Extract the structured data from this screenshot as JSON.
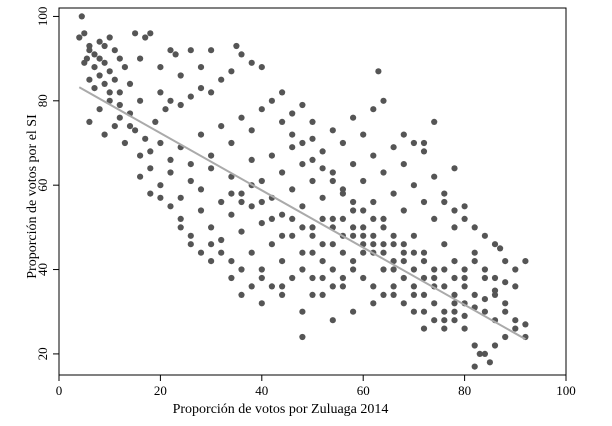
{
  "chart_data": {
    "type": "scatter",
    "title": "",
    "xlabel": "Proporción de votos por Zuluaga 2014",
    "ylabel": "Proporción de votos por el SI",
    "xlim": [
      0,
      100
    ],
    "ylim": [
      15,
      102
    ],
    "xticks": [
      0,
      20,
      40,
      60,
      80,
      100
    ],
    "yticks": [
      20,
      40,
      60,
      80,
      100
    ],
    "grid": false,
    "legend": "none",
    "point_color": "#555555",
    "fit_line_color": "#aaaaaa",
    "fit_line": {
      "x": [
        4,
        92
      ],
      "y": [
        83.2,
        23.5
      ]
    },
    "series": [
      {
        "points": [
          [
            4,
            95
          ],
          [
            4.5,
            100
          ],
          [
            5,
            96
          ],
          [
            6,
            93
          ],
          [
            5.5,
            90
          ],
          [
            7,
            91
          ],
          [
            8,
            94
          ],
          [
            9,
            93
          ],
          [
            10,
            95
          ],
          [
            11,
            92
          ],
          [
            7,
            88
          ],
          [
            8,
            86
          ],
          [
            9,
            89
          ],
          [
            10,
            87
          ],
          [
            12,
            90
          ],
          [
            13,
            88
          ],
          [
            6,
            85
          ],
          [
            7,
            83
          ],
          [
            9,
            84
          ],
          [
            11,
            85
          ],
          [
            12,
            82
          ],
          [
            14,
            84
          ],
          [
            15,
            96
          ],
          [
            17,
            95
          ],
          [
            18,
            96
          ],
          [
            8,
            78
          ],
          [
            10,
            80
          ],
          [
            12,
            79
          ],
          [
            14,
            77
          ],
          [
            16,
            80
          ],
          [
            6,
            75
          ],
          [
            9,
            72
          ],
          [
            11,
            74
          ],
          [
            13,
            70
          ],
          [
            15,
            73
          ],
          [
            17,
            71
          ],
          [
            19,
            75
          ],
          [
            21,
            78
          ],
          [
            22,
            92
          ],
          [
            23,
            91
          ],
          [
            26,
            92
          ],
          [
            20,
            82
          ],
          [
            22,
            80
          ],
          [
            24,
            79
          ],
          [
            26,
            81
          ],
          [
            28,
            83
          ],
          [
            30,
            82
          ],
          [
            32,
            85
          ],
          [
            34,
            87
          ],
          [
            35,
            93
          ],
          [
            36,
            91
          ],
          [
            38,
            89
          ],
          [
            40,
            88
          ],
          [
            18,
            68
          ],
          [
            20,
            70
          ],
          [
            22,
            66
          ],
          [
            24,
            69
          ],
          [
            26,
            65
          ],
          [
            28,
            72
          ],
          [
            30,
            67
          ],
          [
            32,
            74
          ],
          [
            34,
            70
          ],
          [
            36,
            76
          ],
          [
            38,
            73
          ],
          [
            40,
            78
          ],
          [
            42,
            80
          ],
          [
            44,
            82
          ],
          [
            46,
            77
          ],
          [
            48,
            79
          ],
          [
            50,
            75
          ],
          [
            16,
            62
          ],
          [
            18,
            58
          ],
          [
            20,
            60
          ],
          [
            22,
            63
          ],
          [
            24,
            57
          ],
          [
            26,
            61
          ],
          [
            28,
            59
          ],
          [
            30,
            64
          ],
          [
            32,
            56
          ],
          [
            34,
            62
          ],
          [
            36,
            58
          ],
          [
            38,
            66
          ],
          [
            40,
            61
          ],
          [
            42,
            67
          ],
          [
            44,
            63
          ],
          [
            46,
            69
          ],
          [
            48,
            65
          ],
          [
            50,
            71
          ],
          [
            52,
            68
          ],
          [
            54,
            73
          ],
          [
            56,
            70
          ],
          [
            58,
            76
          ],
          [
            60,
            72
          ],
          [
            62,
            78
          ],
          [
            64,
            80
          ],
          [
            24,
            52
          ],
          [
            26,
            48
          ],
          [
            28,
            54
          ],
          [
            30,
            50
          ],
          [
            32,
            47
          ],
          [
            34,
            53
          ],
          [
            36,
            49
          ],
          [
            38,
            55
          ],
          [
            40,
            51
          ],
          [
            42,
            57
          ],
          [
            44,
            53
          ],
          [
            46,
            59
          ],
          [
            48,
            55
          ],
          [
            50,
            61
          ],
          [
            52,
            57
          ],
          [
            54,
            63
          ],
          [
            56,
            59
          ],
          [
            58,
            65
          ],
          [
            60,
            61
          ],
          [
            62,
            67
          ],
          [
            64,
            63
          ],
          [
            66,
            69
          ],
          [
            68,
            65
          ],
          [
            70,
            70
          ],
          [
            72,
            68
          ],
          [
            74,
            62
          ],
          [
            76,
            56
          ],
          [
            78,
            54
          ],
          [
            80,
            52
          ],
          [
            82,
            50
          ],
          [
            84,
            48
          ],
          [
            86,
            46
          ],
          [
            30,
            42
          ],
          [
            34,
            38
          ],
          [
            38,
            44
          ],
          [
            40,
            40
          ],
          [
            42,
            46
          ],
          [
            44,
            42
          ],
          [
            46,
            48
          ],
          [
            48,
            44
          ],
          [
            50,
            50
          ],
          [
            52,
            46
          ],
          [
            54,
            52
          ],
          [
            56,
            48
          ],
          [
            58,
            54
          ],
          [
            60,
            50
          ],
          [
            62,
            56
          ],
          [
            64,
            52
          ],
          [
            66,
            58
          ],
          [
            68,
            54
          ],
          [
            70,
            60
          ],
          [
            72,
            56
          ],
          [
            74,
            52
          ],
          [
            76,
            58
          ],
          [
            78,
            50
          ],
          [
            80,
            55
          ],
          [
            82,
            44
          ],
          [
            84,
            40
          ],
          [
            86,
            38
          ],
          [
            88,
            42
          ],
          [
            90,
            36
          ],
          [
            36,
            34
          ],
          [
            40,
            32
          ],
          [
            44,
            36
          ],
          [
            48,
            30
          ],
          [
            50,
            38
          ],
          [
            52,
            34
          ],
          [
            54,
            40
          ],
          [
            56,
            36
          ],
          [
            58,
            42
          ],
          [
            60,
            38
          ],
          [
            62,
            44
          ],
          [
            64,
            40
          ],
          [
            66,
            46
          ],
          [
            68,
            42
          ],
          [
            70,
            48
          ],
          [
            72,
            44
          ],
          [
            74,
            40
          ],
          [
            76,
            46
          ],
          [
            78,
            42
          ],
          [
            80,
            38
          ],
          [
            82,
            34
          ],
          [
            84,
            30
          ],
          [
            86,
            28
          ],
          [
            88,
            32
          ],
          [
            90,
            28
          ],
          [
            92,
            27
          ],
          [
            48,
            24
          ],
          [
            54,
            28
          ],
          [
            58,
            30
          ],
          [
            62,
            32
          ],
          [
            66,
            34
          ],
          [
            70,
            30
          ],
          [
            72,
            26
          ],
          [
            76,
            28
          ],
          [
            78,
            30
          ],
          [
            80,
            26
          ],
          [
            82,
            22
          ],
          [
            84,
            20
          ],
          [
            86,
            22
          ],
          [
            88,
            24
          ],
          [
            82,
            17
          ],
          [
            83,
            20
          ],
          [
            85,
            18
          ],
          [
            63,
            87
          ],
          [
            72,
            70
          ],
          [
            78,
            64
          ],
          [
            74,
            75
          ],
          [
            68,
            72
          ],
          [
            30,
            92
          ],
          [
            28,
            88
          ],
          [
            24,
            86
          ],
          [
            20,
            88
          ],
          [
            16,
            90
          ],
          [
            44,
            75
          ],
          [
            46,
            72
          ],
          [
            48,
            70
          ],
          [
            50,
            66
          ],
          [
            52,
            64
          ],
          [
            54,
            61
          ],
          [
            56,
            58
          ],
          [
            58,
            56
          ],
          [
            60,
            54
          ],
          [
            62,
            52
          ],
          [
            64,
            50
          ],
          [
            66,
            48
          ],
          [
            68,
            46
          ],
          [
            70,
            44
          ],
          [
            72,
            42
          ],
          [
            74,
            38
          ],
          [
            76,
            36
          ],
          [
            78,
            34
          ],
          [
            80,
            32
          ],
          [
            60,
            46
          ],
          [
            58,
            48
          ],
          [
            56,
            44
          ],
          [
            54,
            46
          ],
          [
            52,
            42
          ],
          [
            50,
            44
          ],
          [
            48,
            40
          ],
          [
            46,
            38
          ],
          [
            44,
            34
          ],
          [
            42,
            36
          ],
          [
            40,
            38
          ],
          [
            38,
            36
          ],
          [
            36,
            40
          ],
          [
            34,
            42
          ],
          [
            32,
            44
          ],
          [
            30,
            46
          ],
          [
            28,
            44
          ],
          [
            26,
            46
          ],
          [
            24,
            50
          ],
          [
            22,
            55
          ],
          [
            20,
            57
          ],
          [
            18,
            64
          ],
          [
            16,
            67
          ],
          [
            14,
            74
          ],
          [
            12,
            76
          ],
          [
            10,
            82
          ],
          [
            8,
            90
          ],
          [
            6,
            92
          ],
          [
            5,
            89
          ],
          [
            66,
            40
          ],
          [
            68,
            38
          ],
          [
            70,
            36
          ],
          [
            72,
            34
          ],
          [
            74,
            32
          ],
          [
            76,
            30
          ],
          [
            78,
            28
          ],
          [
            80,
            29
          ],
          [
            82,
            31
          ],
          [
            84,
            33
          ],
          [
            86,
            35
          ],
          [
            88,
            37
          ],
          [
            90,
            40
          ],
          [
            92,
            42
          ],
          [
            87,
            45
          ],
          [
            64,
            46
          ],
          [
            62,
            48
          ],
          [
            60,
            44
          ],
          [
            58,
            40
          ],
          [
            56,
            38
          ],
          [
            54,
            36
          ],
          [
            52,
            38
          ],
          [
            50,
            34
          ],
          [
            62,
            36
          ],
          [
            64,
            34
          ],
          [
            66,
            36
          ],
          [
            68,
            32
          ],
          [
            70,
            34
          ],
          [
            72,
            30
          ],
          [
            74,
            28
          ],
          [
            76,
            26
          ],
          [
            78,
            32
          ],
          [
            80,
            36
          ],
          [
            34,
            58
          ],
          [
            36,
            56
          ],
          [
            38,
            60
          ],
          [
            40,
            56
          ],
          [
            42,
            52
          ],
          [
            44,
            48
          ],
          [
            46,
            52
          ],
          [
            48,
            50
          ],
          [
            50,
            48
          ],
          [
            52,
            52
          ],
          [
            54,
            50
          ],
          [
            56,
            52
          ],
          [
            58,
            50
          ],
          [
            60,
            48
          ],
          [
            62,
            46
          ],
          [
            64,
            44
          ],
          [
            66,
            42
          ],
          [
            68,
            44
          ],
          [
            70,
            40
          ],
          [
            72,
            38
          ],
          [
            74,
            36
          ],
          [
            76,
            40
          ],
          [
            78,
            38
          ],
          [
            80,
            40
          ],
          [
            82,
            42
          ],
          [
            84,
            38
          ],
          [
            86,
            34
          ],
          [
            88,
            30
          ],
          [
            90,
            26
          ],
          [
            92,
            24
          ]
        ]
      }
    ]
  }
}
